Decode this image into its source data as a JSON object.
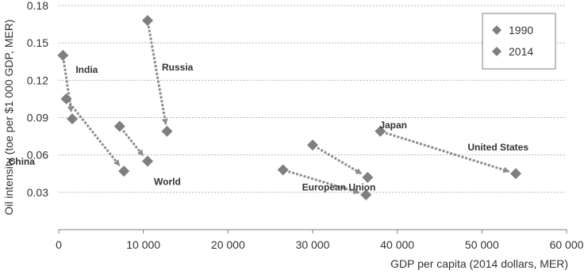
{
  "chart_data": {
    "type": "scatter",
    "xlabel": "GDP per capita (2014 dollars, MER)",
    "ylabel": "Oil intensity (toe per $1 000 GDP, MER)",
    "xlim": [
      0,
      60000
    ],
    "ylim": [
      0,
      0.18
    ],
    "x_ticks": [
      0,
      10000,
      20000,
      30000,
      40000,
      50000,
      60000
    ],
    "x_tick_labels": [
      "0",
      "10 000",
      "20 000",
      "30 000",
      "40 000",
      "50 000",
      "60 000"
    ],
    "y_ticks": [
      0.03,
      0.06,
      0.09,
      0.12,
      0.15,
      0.18
    ],
    "y_tick_labels": [
      "0.03",
      "0.06",
      "0.09",
      "0.12",
      "0.15",
      "0.18"
    ],
    "grid": "horizontal dotted",
    "legend_position": "top-right",
    "marker": "diamond",
    "marker_color": "#7f7f7f",
    "arrow_color": "#8c8c8c",
    "series": [
      {
        "name": "1990"
      },
      {
        "name": "2014"
      }
    ],
    "regions": [
      {
        "label": "India",
        "from": [
          500,
          0.14
        ],
        "to": [
          1600,
          0.089
        ]
      },
      {
        "label": "China",
        "from": [
          900,
          0.105
        ],
        "to": [
          7700,
          0.047
        ]
      },
      {
        "label": "Russia",
        "from": [
          10500,
          0.168
        ],
        "to": [
          12800,
          0.079
        ]
      },
      {
        "label": "World",
        "from": [
          7200,
          0.083
        ],
        "to": [
          10500,
          0.055
        ]
      },
      {
        "label": "Japan",
        "from": [
          30000,
          0.068
        ],
        "to": [
          36500,
          0.042
        ]
      },
      {
        "label": "European Union",
        "from": [
          26500,
          0.048
        ],
        "to": [
          36300,
          0.028
        ]
      },
      {
        "label": "United States",
        "from": [
          38000,
          0.079
        ],
        "to": [
          54000,
          0.045
        ]
      }
    ]
  }
}
